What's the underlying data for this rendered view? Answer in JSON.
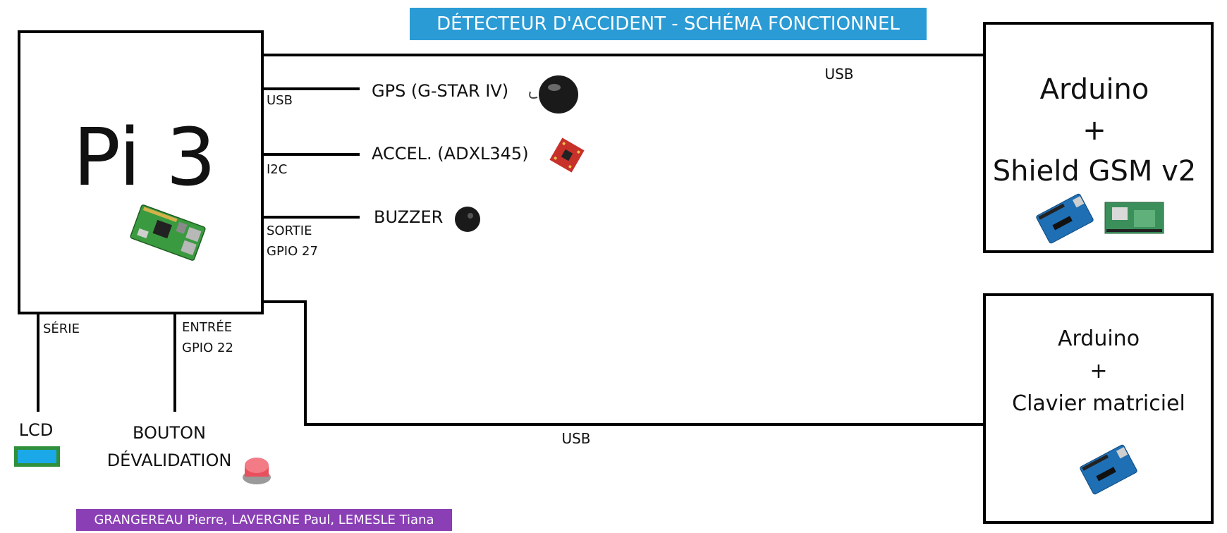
{
  "title": "DÉTECTEUR D'ACCIDENT - SCHÉMA FONCTIONNEL",
  "authors": "GRANGEREAU Pierre, LAVERGNE Paul, LEMESLE Tiana",
  "colors": {
    "title_bg": "#2a9bd4",
    "authors_bg": "#8a3fb5",
    "line": "#000000",
    "button_red": "#e8505e",
    "lcd_blue": "#1aa8e8",
    "arduino_blue": "#1f6fb5",
    "shield_green": "#3b8f5a",
    "accel_red": "#c8302a"
  },
  "pi": {
    "label": "Pi 3",
    "icon": "raspberry-pi-board-icon"
  },
  "peripherals": {
    "gps": {
      "label": "GPS (G-STAR IV)",
      "link": "USB",
      "icon": "gps-antenna-icon"
    },
    "accel": {
      "label": "ACCEL. (ADXL345)",
      "link": "I2C",
      "icon": "accelerometer-board-icon"
    },
    "buzzer": {
      "label": "BUZZER",
      "link_line1": "SORTIE",
      "link_line2": "GPIO 27",
      "icon": "buzzer-icon"
    },
    "lcd": {
      "label": "LCD",
      "link": "SÉRIE",
      "icon": "lcd-display-icon"
    },
    "button": {
      "label_line1": "BOUTON",
      "label_line2": "DÉVALIDATION",
      "link_line1": "ENTRÉE",
      "link_line2": "GPIO 22",
      "icon": "push-button-icon"
    }
  },
  "arduino_gsm": {
    "line1": "Arduino",
    "line2": "+",
    "line3": "Shield GSM v2",
    "link": "USB",
    "icons": [
      "arduino-board-icon",
      "gsm-shield-icon"
    ]
  },
  "arduino_keypad": {
    "line1": "Arduino",
    "line2": "+",
    "line3": "Clavier matriciel",
    "link": "USB",
    "icon": "arduino-board-icon"
  }
}
